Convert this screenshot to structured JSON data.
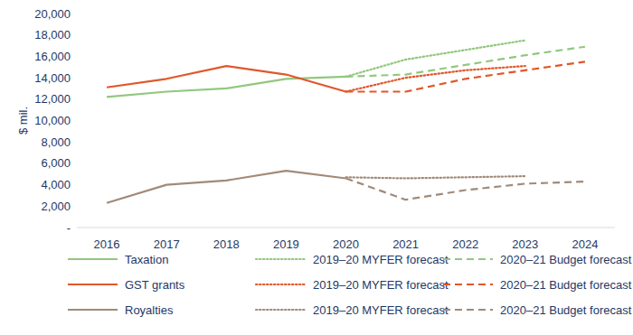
{
  "chart_data": {
    "type": "line",
    "y_label": "$ mil.",
    "x": [
      2016,
      2017,
      2018,
      2019,
      2020,
      2021,
      2022,
      2023,
      2024
    ],
    "xlim": [
      2015.5,
      2024.5
    ],
    "xticks": [
      2016,
      2017,
      2018,
      2019,
      2020,
      2021,
      2022,
      2023,
      2024
    ],
    "ylim": [
      0,
      20000
    ],
    "yticks": [
      {
        "value": 0,
        "label": "-"
      },
      {
        "value": 2000,
        "label": "2,000"
      },
      {
        "value": 4000,
        "label": "4,000"
      },
      {
        "value": 6000,
        "label": "6,000"
      },
      {
        "value": 8000,
        "label": "8,000"
      },
      {
        "value": 10000,
        "label": "10,000"
      },
      {
        "value": 12000,
        "label": "12,000"
      },
      {
        "value": 14000,
        "label": "14,000"
      },
      {
        "value": 16000,
        "label": "16,000"
      },
      {
        "value": 18000,
        "label": "18,000"
      },
      {
        "value": 20000,
        "label": "20,000"
      }
    ],
    "grid": false,
    "legend": "bottom",
    "series": [
      {
        "name": "Taxation",
        "color": "#92c77f",
        "line_style": "solid",
        "values": [
          12200,
          12700,
          13000,
          13900,
          14100,
          null,
          null,
          null,
          null
        ]
      },
      {
        "name": "2019–20 MYFER forecast",
        "color": "#92c77f",
        "line_style": "dotted",
        "values": [
          null,
          null,
          null,
          null,
          14100,
          15700,
          16600,
          17500,
          null
        ]
      },
      {
        "name": "2020–21 Budget forecast",
        "color": "#92c77f",
        "line_style": "dashed",
        "values": [
          null,
          null,
          null,
          null,
          14100,
          14300,
          15200,
          16100,
          16900
        ]
      },
      {
        "name": "GST grants",
        "color": "#e0572a",
        "line_style": "solid",
        "values": [
          13100,
          13900,
          15100,
          14300,
          12700,
          null,
          null,
          null,
          null
        ]
      },
      {
        "name": "2019–20 MYFER forecast",
        "color": "#e0572a",
        "line_style": "dotted",
        "values": [
          null,
          null,
          null,
          null,
          12700,
          14000,
          14700,
          15100,
          null
        ]
      },
      {
        "name": "2020–21 Budget forecast",
        "color": "#e0572a",
        "line_style": "dashed",
        "values": [
          null,
          null,
          null,
          null,
          12700,
          12700,
          13900,
          14700,
          15500
        ]
      },
      {
        "name": "Royalties",
        "color": "#a28a78",
        "line_style": "solid",
        "values": [
          2300,
          4000,
          4400,
          5300,
          4600,
          null,
          null,
          null,
          null
        ]
      },
      {
        "name": "2019–20 MYFER forecast",
        "color": "#a28a78",
        "line_style": "dotted",
        "values": [
          null,
          null,
          null,
          null,
          4700,
          4600,
          4700,
          4800,
          null
        ]
      },
      {
        "name": "2020–21 Budget forecast",
        "color": "#a28a78",
        "line_style": "dashed",
        "values": [
          null,
          null,
          null,
          null,
          4600,
          2600,
          3500,
          4100,
          4300
        ]
      }
    ]
  }
}
